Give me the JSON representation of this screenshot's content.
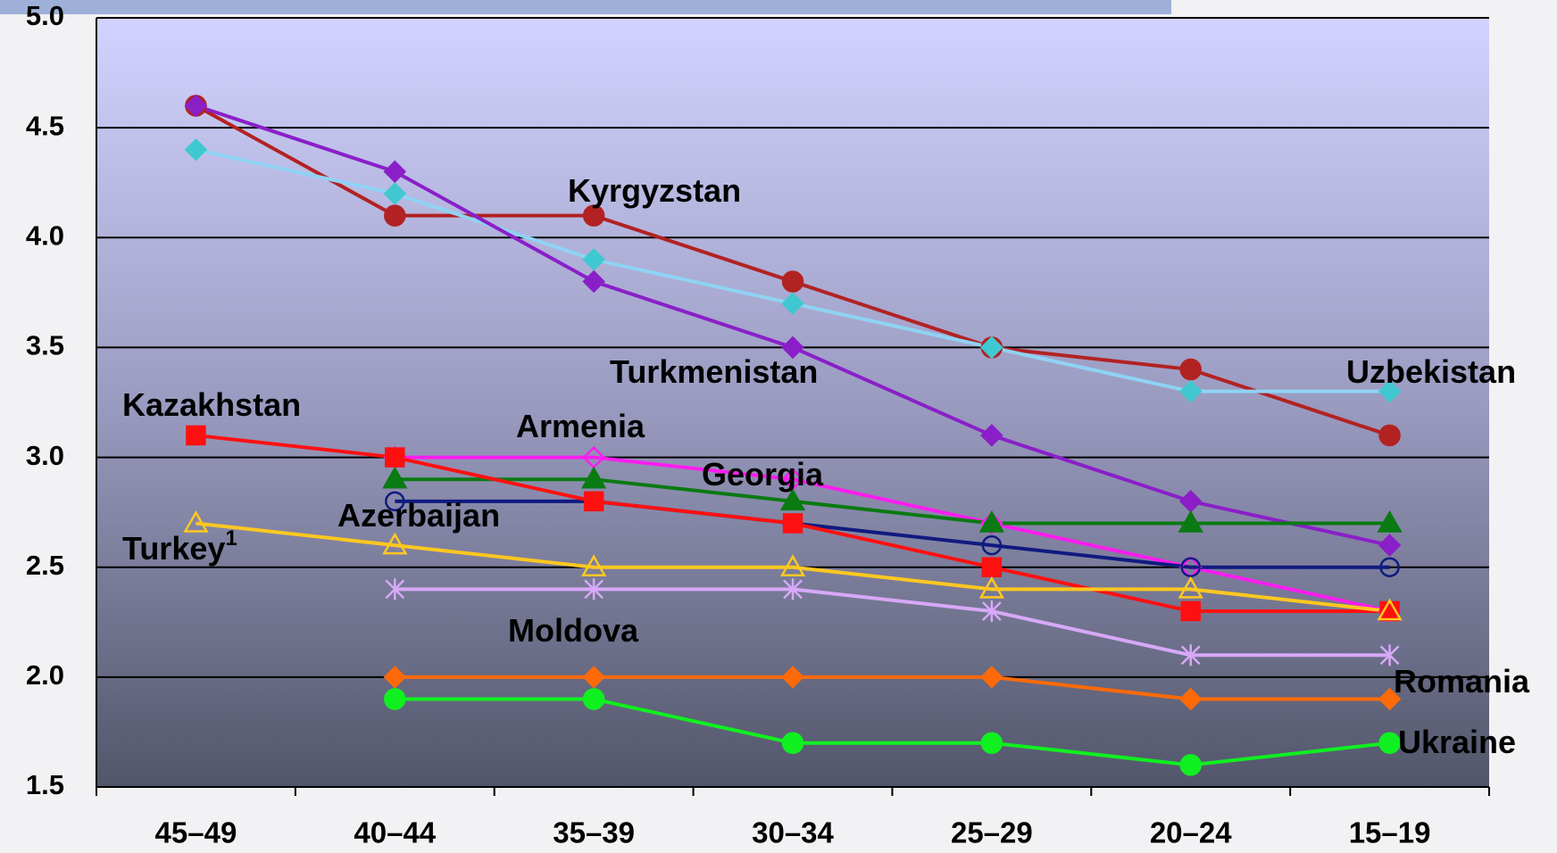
{
  "chart_data": {
    "type": "line",
    "categories": [
      "45–49",
      "40–44",
      "35–39",
      "30–34",
      "25–29",
      "20–24",
      "15–19"
    ],
    "ylim": [
      1.5,
      5.0
    ],
    "yticks": [
      1.5,
      {
        "value": 2,
        "label": "2.0"
      },
      2.5,
      {
        "value": 3,
        "label": "3.0"
      },
      3.5,
      {
        "value": 4,
        "label": "4.0"
      },
      4.5,
      {
        "value": 5,
        "label": "5.0"
      }
    ],
    "grid": true,
    "series": [
      {
        "name": "Kyrgyzstan",
        "color": "#b22222",
        "marker": "circle",
        "filled": true,
        "values": [
          4.6,
          4.1,
          4.1,
          3.8,
          3.5,
          3.4,
          3.1
        ]
      },
      {
        "name": "Uzbekistan",
        "color": "#8fd3f4",
        "marker_color": "#40c8d0",
        "marker": "diamond",
        "filled": true,
        "values": [
          4.4,
          4.2,
          3.9,
          3.7,
          3.5,
          3.3,
          3.3
        ]
      },
      {
        "name": "Turkmenistan",
        "color": "#8a1fc8",
        "marker": "diamond",
        "filled": true,
        "values": [
          4.6,
          4.3,
          3.8,
          3.5,
          3.1,
          2.8,
          2.6
        ]
      },
      {
        "name": "Armenia",
        "color": "#ff1cf0",
        "marker": "diamond",
        "filled": false,
        "values": [
          null,
          3.0,
          3.0,
          2.9,
          2.7,
          2.5,
          2.3
        ]
      },
      {
        "name": "Georgia",
        "color": "#0a7a12",
        "marker": "triangle",
        "filled": true,
        "values": [
          null,
          2.9,
          2.9,
          2.8,
          2.7,
          2.7,
          2.7
        ]
      },
      {
        "name": "Azerbaijan",
        "color": "#101a80",
        "marker": "circle",
        "filled": false,
        "values": [
          null,
          2.8,
          2.8,
          2.7,
          2.6,
          2.5,
          2.5
        ]
      },
      {
        "name": "Kazakhstan",
        "color": "#ff1010",
        "marker": "square",
        "filled": true,
        "values": [
          3.1,
          3.0,
          2.8,
          2.7,
          2.5,
          2.3,
          2.3
        ]
      },
      {
        "name": "Turkey",
        "name_note": "1",
        "color": "#ffc820",
        "marker": "triangle",
        "filled": false,
        "values": [
          2.7,
          2.6,
          2.5,
          2.5,
          2.4,
          2.4,
          2.3
        ]
      },
      {
        "name": "Moldova",
        "color": "#d8a8f8",
        "marker": "star",
        "filled": false,
        "values": [
          null,
          2.4,
          2.4,
          2.4,
          2.3,
          2.1,
          2.1
        ]
      },
      {
        "name": "Romania",
        "color": "#ff6a08",
        "marker": "diamond",
        "filled": true,
        "values": [
          null,
          2.0,
          2.0,
          2.0,
          2.0,
          1.9,
          1.9
        ]
      },
      {
        "name": "Ukraine",
        "color": "#10f020",
        "marker": "circle",
        "filled": true,
        "values": [
          null,
          1.9,
          1.9,
          1.7,
          1.7,
          1.6,
          1.7
        ]
      }
    ]
  }
}
